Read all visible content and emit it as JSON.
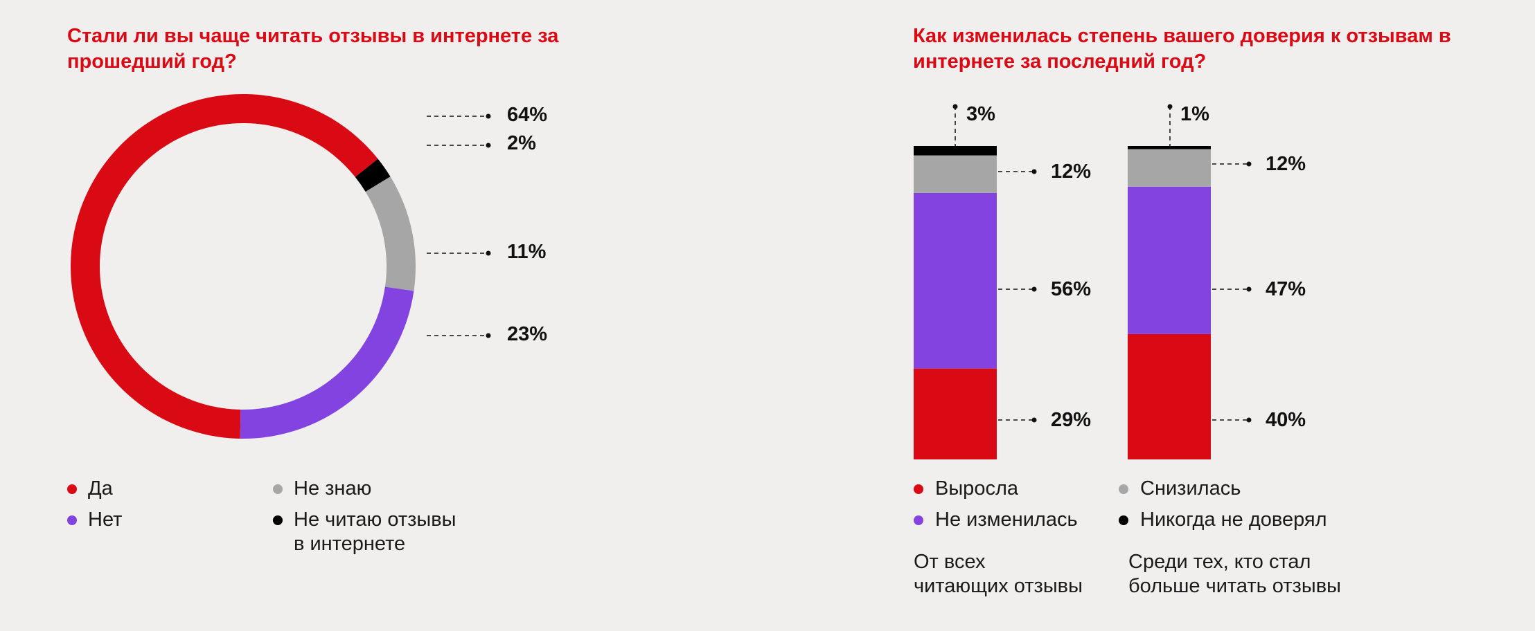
{
  "chart_data": [
    {
      "type": "pie",
      "variant": "donut",
      "title": "Стали ли вы чаще читать отзывы в интернете за прошедший год?",
      "slices": [
        {
          "label": "Да",
          "value": 64,
          "value_label": "64%",
          "color": "#d90a14"
        },
        {
          "label": "Не читаю отзывы в интернете",
          "value": 2,
          "value_label": "2%",
          "color": "#000000"
        },
        {
          "label": "Не знаю",
          "value": 11,
          "value_label": "11%",
          "color": "#a6a6a6"
        },
        {
          "label": "Нет",
          "value": 23,
          "value_label": "23%",
          "color": "#8343e0"
        }
      ],
      "legend": [
        {
          "label": "Да",
          "color": "#d90a14"
        },
        {
          "label": "Нет",
          "color": "#8343e0"
        },
        {
          "label": "Не знаю",
          "color": "#a6a6a6"
        },
        {
          "label_lines": [
            "Не читаю отзывы",
            "в интернете"
          ],
          "color": "#000000"
        }
      ],
      "legend_placement": "bottom"
    },
    {
      "type": "bar",
      "stacked": true,
      "title": "Как изменилась степень вашего доверия к отзывам в интернете за последний год?",
      "categories": [
        [
          "От всех",
          "читающих отзывы"
        ],
        [
          "Среди тех, кто стал",
          "больше читать отзывы"
        ]
      ],
      "series": [
        {
          "name": "Выросла",
          "values": [
            29,
            40
          ],
          "value_labels": [
            "29%",
            "40%"
          ],
          "color": "#d90a14"
        },
        {
          "name": "Не изменилась",
          "values": [
            56,
            47
          ],
          "value_labels": [
            "56%",
            "47%"
          ],
          "color": "#8343e0"
        },
        {
          "name": "Снизилась",
          "values": [
            12,
            12
          ],
          "value_labels": [
            "12%",
            "12%"
          ],
          "color": "#a6a6a6"
        },
        {
          "name": "Никогда не доверял",
          "values": [
            3,
            1
          ],
          "value_labels": [
            "3%",
            "1%"
          ],
          "color": "#000000"
        }
      ],
      "legend": [
        {
          "label": "Выросла",
          "color": "#d90a14"
        },
        {
          "label": "Не изменилась",
          "color": "#8343e0"
        },
        {
          "label": "Снизилась",
          "color": "#a6a6a6"
        },
        {
          "label": "Никогда не доверял",
          "color": "#000000"
        }
      ],
      "legend_placement": "bottom",
      "grid": false
    }
  ]
}
